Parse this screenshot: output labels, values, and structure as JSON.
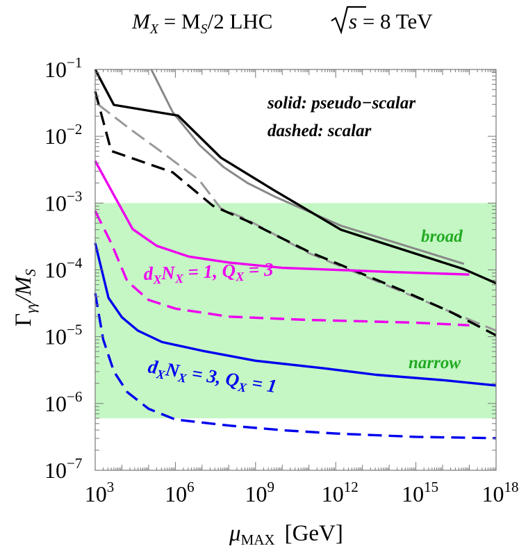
{
  "chart_data": {
    "type": "line",
    "title": {
      "part1": "M",
      "part1_sub": "X",
      "part2": " = M",
      "part2_sub": "S",
      "part3": "/2  LHC  ",
      "sqrt_arg": "s",
      "part4": " = 8 TeV"
    },
    "xlabel": {
      "symbol": "μ",
      "sub": "MAX",
      "unit": "[GeV]"
    },
    "ylabel": {
      "main": "Γ",
      "sub1": "γγ",
      "mid": "/M",
      "sub2": "S"
    },
    "x_scale": "log10",
    "y_scale": "log10",
    "xlim_log10": [
      3,
      18
    ],
    "ylim_log10": [
      -7,
      -1
    ],
    "x_ticks": [
      {
        "base": "10",
        "exp": "3"
      },
      {
        "base": "10",
        "exp": "6"
      },
      {
        "base": "10",
        "exp": "9"
      },
      {
        "base": "10",
        "exp": "12"
      },
      {
        "base": "10",
        "exp": "15"
      },
      {
        "base": "10",
        "exp": "18"
      }
    ],
    "y_ticks": [
      {
        "base": "10",
        "exp": "−7"
      },
      {
        "base": "10",
        "exp": "−6"
      },
      {
        "base": "10",
        "exp": "−5"
      },
      {
        "base": "10",
        "exp": "−4"
      },
      {
        "base": "10",
        "exp": "−3"
      },
      {
        "base": "10",
        "exp": "−2"
      },
      {
        "base": "10",
        "exp": "−1"
      }
    ],
    "legend": {
      "line1": "solid: pseudo−scalar",
      "line2": "dashed: scalar"
    },
    "bands": [
      {
        "name": "broad",
        "label": "broad",
        "ylim_log10": [
          -4.556,
          -3
        ],
        "color": "#c4f7c4",
        "label_color": "#22aa22"
      },
      {
        "name": "narrow",
        "label": "narrow",
        "ylim_log10": [
          -6.222,
          -4.556
        ],
        "color": "#c4f7c4",
        "label_color": "#22aa22"
      }
    ],
    "annotations": [
      {
        "name": "magenta-label",
        "parts": [
          "d",
          "X",
          "N",
          "X",
          " = 1, Q",
          "X",
          " = 3"
        ],
        "color": "#ee00ee"
      },
      {
        "name": "blue-label",
        "parts": [
          "d",
          "X",
          "N",
          "X",
          " = 3, Q",
          "X",
          " = 1"
        ],
        "color": "#0000ee"
      }
    ],
    "series": [
      {
        "name": "gray-solid",
        "color": "#888888",
        "style": "solid",
        "points": [
          [
            5.1,
            -1
          ],
          [
            5.9,
            -1.64
          ],
          [
            6.9,
            -2.13
          ],
          [
            7.8,
            -2.46
          ],
          [
            8.7,
            -2.7
          ],
          [
            9.7,
            -2.9
          ],
          [
            12.2,
            -3.34
          ],
          [
            16.8,
            -3.91
          ]
        ]
      },
      {
        "name": "gray-dashed",
        "color": "#999999",
        "style": "dashed",
        "points": [
          [
            3.1,
            -1.52
          ],
          [
            4.3,
            -1.89
          ],
          [
            5.5,
            -2.24
          ],
          [
            6.9,
            -2.66
          ],
          [
            7.7,
            -3.08
          ],
          [
            8.7,
            -3.25
          ],
          [
            11.0,
            -3.75
          ],
          [
            14.5,
            -4.33
          ],
          [
            18.0,
            -4.91
          ]
        ]
      },
      {
        "name": "black-solid",
        "color": "#000000",
        "style": "solid",
        "points": [
          [
            3.0,
            -1.0
          ],
          [
            3.7,
            -1.53
          ],
          [
            6.1,
            -1.69
          ],
          [
            7.7,
            -2.32
          ],
          [
            9.7,
            -2.81
          ],
          [
            12.2,
            -3.4
          ],
          [
            16.8,
            -3.99
          ],
          [
            18.0,
            -4.2
          ]
        ]
      },
      {
        "name": "black-dashed",
        "color": "#000000",
        "style": "dashed",
        "points": [
          [
            3.0,
            -1.33
          ],
          [
            3.6,
            -2.22
          ],
          [
            5.9,
            -2.54
          ],
          [
            7.4,
            -3.04
          ],
          [
            8.7,
            -3.27
          ],
          [
            11.0,
            -3.73
          ],
          [
            14.5,
            -4.31
          ],
          [
            16.3,
            -4.63
          ],
          [
            18.0,
            -4.98
          ]
        ]
      },
      {
        "name": "magenta-solid",
        "color": "#ee00ee",
        "style": "solid",
        "points": [
          [
            3.0,
            -2.37
          ],
          [
            3.7,
            -2.88
          ],
          [
            4.4,
            -3.39
          ],
          [
            5.3,
            -3.64
          ],
          [
            6.5,
            -3.8
          ],
          [
            8.0,
            -3.89
          ],
          [
            10.0,
            -3.97
          ],
          [
            14.0,
            -4.03
          ],
          [
            17.0,
            -4.07
          ]
        ]
      },
      {
        "name": "magenta-dashed",
        "color": "#ee00ee",
        "style": "dashed",
        "points": [
          [
            3.0,
            -3.12
          ],
          [
            3.6,
            -3.6
          ],
          [
            4.2,
            -4.17
          ],
          [
            5.0,
            -4.45
          ],
          [
            6.0,
            -4.58
          ],
          [
            8.0,
            -4.7
          ],
          [
            11.0,
            -4.75
          ],
          [
            15.0,
            -4.79
          ],
          [
            17.0,
            -4.83
          ]
        ]
      },
      {
        "name": "blue-solid",
        "color": "#0000ee",
        "style": "solid",
        "points": [
          [
            3.0,
            -3.6
          ],
          [
            3.5,
            -4.42
          ],
          [
            4.0,
            -4.71
          ],
          [
            4.6,
            -4.91
          ],
          [
            5.5,
            -5.08
          ],
          [
            7.0,
            -5.21
          ],
          [
            9.0,
            -5.36
          ],
          [
            11.5,
            -5.47
          ],
          [
            13.5,
            -5.57
          ],
          [
            16.0,
            -5.65
          ],
          [
            18.0,
            -5.73
          ]
        ]
      },
      {
        "name": "blue-dashed",
        "color": "#0000ee",
        "style": "dashed",
        "points": [
          [
            3.0,
            -4.35
          ],
          [
            3.3,
            -5.04
          ],
          [
            3.7,
            -5.52
          ],
          [
            4.2,
            -5.83
          ],
          [
            5.0,
            -6.08
          ],
          [
            6.0,
            -6.24
          ],
          [
            8.0,
            -6.33
          ],
          [
            10.0,
            -6.4
          ],
          [
            12.0,
            -6.45
          ],
          [
            15.0,
            -6.5
          ],
          [
            18.0,
            -6.52
          ]
        ]
      }
    ]
  }
}
